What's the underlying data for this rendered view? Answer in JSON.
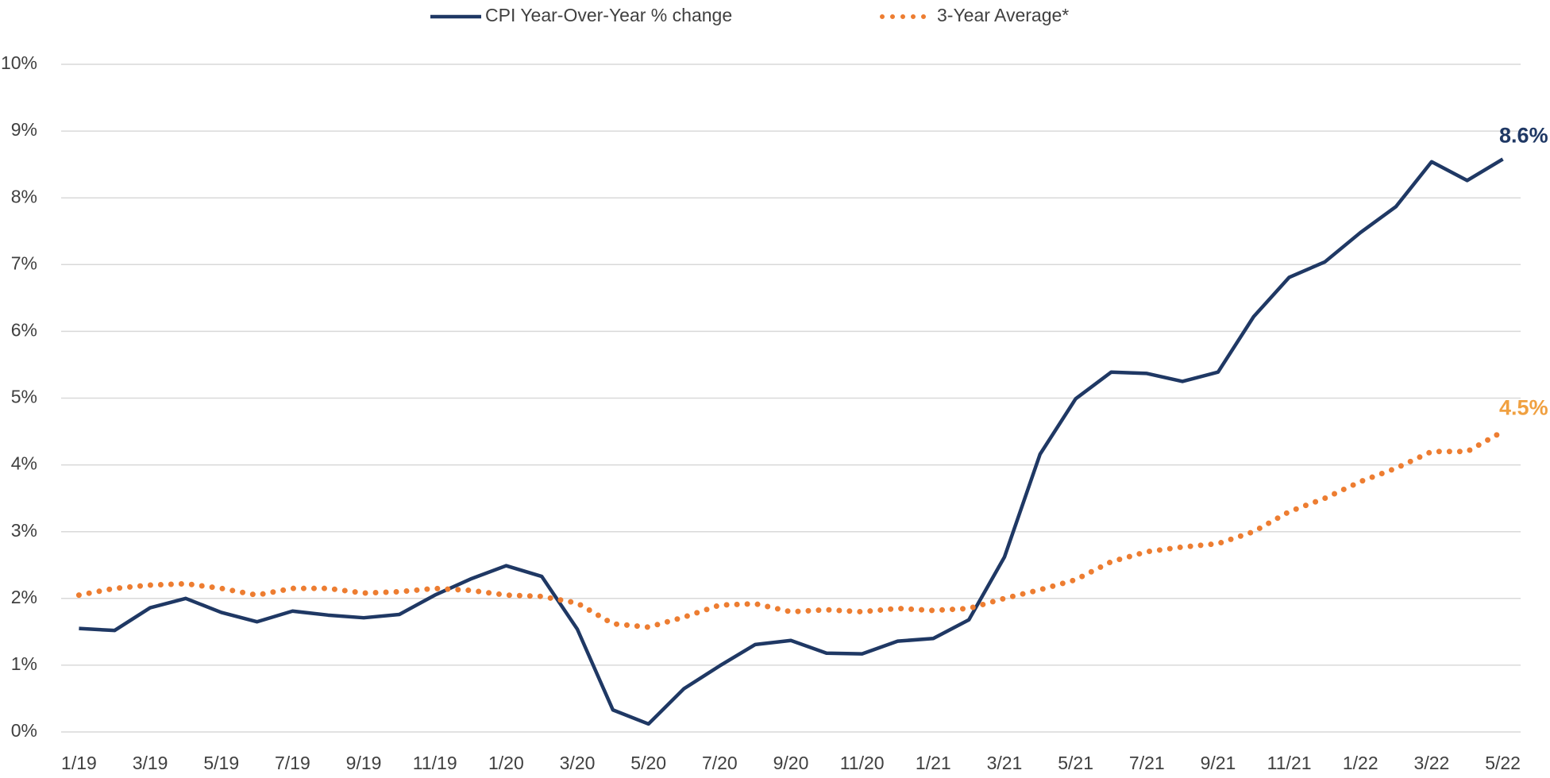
{
  "chart_data": {
    "type": "line",
    "categories": [
      "1/19",
      null,
      "3/19",
      null,
      "5/19",
      null,
      "7/19",
      null,
      "9/19",
      null,
      "11/19",
      null,
      "1/20",
      null,
      "3/20",
      null,
      "5/20",
      null,
      "7/20",
      null,
      "9/20",
      null,
      "11/20",
      null,
      "1/21",
      null,
      "3/21",
      null,
      "5/21",
      null,
      "7/21",
      null,
      "9/21",
      null,
      "11/21",
      null,
      "1/22",
      null,
      "3/22",
      null,
      "5/22"
    ],
    "series": [
      {
        "name": "CPI Year-Over-Year % change",
        "color": "#1f3864",
        "style": "solid",
        "values": [
          1.55,
          1.52,
          1.86,
          2.0,
          1.79,
          1.65,
          1.81,
          1.75,
          1.71,
          1.76,
          2.05,
          2.29,
          2.49,
          2.33,
          1.54,
          0.33,
          0.12,
          0.65,
          0.99,
          1.31,
          1.37,
          1.18,
          1.17,
          1.36,
          1.4,
          1.68,
          2.62,
          4.16,
          4.99,
          5.39,
          5.37,
          5.25,
          5.39,
          6.22,
          6.81,
          7.04,
          7.48,
          7.87,
          8.54,
          8.26,
          8.58
        ],
        "value_labels": [
          null,
          null,
          null,
          null,
          null,
          null,
          null,
          null,
          null,
          null,
          null,
          null,
          null,
          null,
          null,
          null,
          null,
          null,
          null,
          null,
          null,
          null,
          null,
          null,
          null,
          null,
          null,
          null,
          null,
          null,
          null,
          null,
          null,
          null,
          null,
          null,
          null,
          null,
          null,
          null,
          "8.6%"
        ],
        "label_color": "#1f3864"
      },
      {
        "name": "3-Year Average*",
        "color": "#ed7d31",
        "style": "dotted",
        "values": [
          2.05,
          2.15,
          2.2,
          2.22,
          2.15,
          2.05,
          2.15,
          2.15,
          2.08,
          2.1,
          2.15,
          2.12,
          2.05,
          2.03,
          1.93,
          1.62,
          1.57,
          1.72,
          1.9,
          1.92,
          1.8,
          1.83,
          1.8,
          1.85,
          1.82,
          1.85,
          2.0,
          2.13,
          2.28,
          2.55,
          2.7,
          2.77,
          2.82,
          3.0,
          3.3,
          3.5,
          3.75,
          3.95,
          4.2,
          4.2,
          4.5
        ],
        "value_labels": [
          null,
          null,
          null,
          null,
          null,
          null,
          null,
          null,
          null,
          null,
          null,
          null,
          null,
          null,
          null,
          null,
          null,
          null,
          null,
          null,
          null,
          null,
          null,
          null,
          null,
          null,
          null,
          null,
          null,
          null,
          null,
          null,
          null,
          null,
          null,
          null,
          null,
          null,
          null,
          null,
          "4.5%"
        ],
        "label_color": "#f0a040"
      }
    ],
    "ylim": [
      0,
      10
    ],
    "yticks": [
      {
        "value": 0,
        "label": "0%"
      },
      {
        "value": 1,
        "label": "1%"
      },
      {
        "value": 2,
        "label": "2%"
      },
      {
        "value": 3,
        "label": "3%"
      },
      {
        "value": 4,
        "label": "4%"
      },
      {
        "value": 5,
        "label": "5%"
      },
      {
        "value": 6,
        "label": "6%"
      },
      {
        "value": 7,
        "label": "7%"
      },
      {
        "value": 8,
        "label": "8%"
      },
      {
        "value": 9,
        "label": "9%"
      },
      {
        "value": 10,
        "label": "10%"
      }
    ],
    "grid": true,
    "legend": "top"
  }
}
